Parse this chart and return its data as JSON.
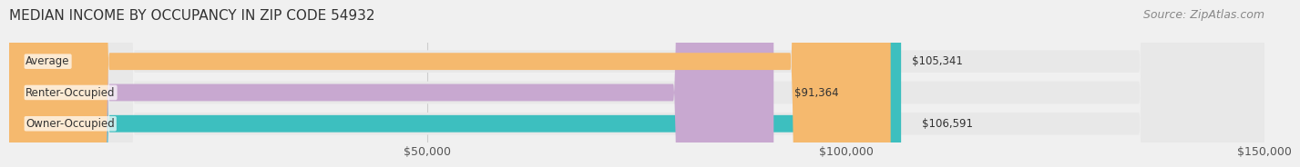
{
  "title": "MEDIAN INCOME BY OCCUPANCY IN ZIP CODE 54932",
  "source": "Source: ZipAtlas.com",
  "categories": [
    "Owner-Occupied",
    "Renter-Occupied",
    "Average"
  ],
  "values": [
    106591,
    91364,
    105341
  ],
  "bar_colors": [
    "#3dbfbf",
    "#c8a8d0",
    "#f5b96e"
  ],
  "bar_labels": [
    "$106,591",
    "$91,364",
    "$105,341"
  ],
  "xlim": [
    0,
    150000
  ],
  "xticks": [
    0,
    50000,
    100000,
    150000
  ],
  "xtick_labels": [
    "",
    "$50,000",
    "$100,000",
    "$150,000"
  ],
  "background_color": "#f0f0f0",
  "bar_background_color": "#e8e8e8",
  "title_fontsize": 11,
  "source_fontsize": 9,
  "label_fontsize": 8.5,
  "tick_fontsize": 9
}
